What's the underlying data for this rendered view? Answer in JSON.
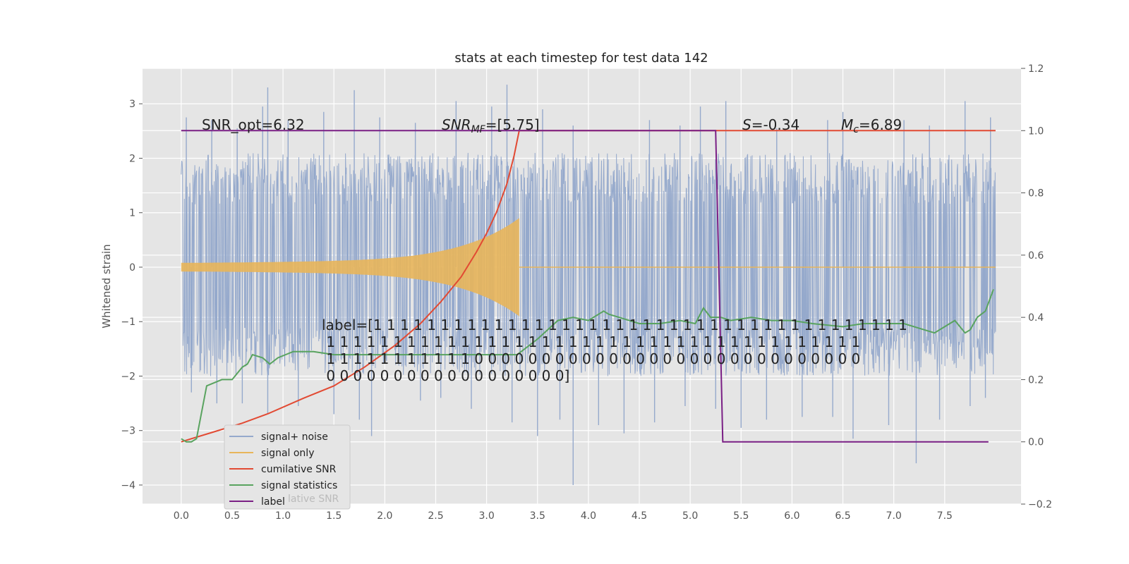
{
  "chart_data": {
    "type": "line",
    "title": "stats at each timestep for test data 142",
    "ylabel": "Whitened strain",
    "xlim": [
      -0.38,
      8.25
    ],
    "ylim": [
      -4.35,
      3.65
    ],
    "y2lim": [
      -0.2,
      1.2
    ],
    "x_ticks": [
      "0.0",
      "0.5",
      "1.0",
      "1.5",
      "2.0",
      "2.5",
      "3.0",
      "3.5",
      "4.0",
      "4.5",
      "5.0",
      "5.5",
      "6.0",
      "6.5",
      "7.0",
      "7.5"
    ],
    "y_ticks": [
      "3",
      "2",
      "1",
      "0",
      "−1",
      "−2",
      "−3",
      "−4"
    ],
    "y2_ticks": [
      "1.2",
      "1.0",
      "0.8",
      "0.6",
      "0.4",
      "0.2",
      "0.0",
      "−0.2"
    ],
    "grid": true,
    "legend_position": "lower-left",
    "annotations": {
      "snr_opt": "SNR_opt=6.32",
      "snr_mf_math": "SNR",
      "snr_mf_sub": "MF",
      "snr_mf_value": "=[5.75]",
      "s_math": "S",
      "s_value": "=-0.34",
      "mc_math": "M",
      "mc_sub": "c",
      "mc_value": "=6.89",
      "label_lines": [
        "label=[1 1 1 1 1 1 1 1 1 1 1 1 1 1 1 1 1 1 1 1 1 1 1 1 1 1 1 1 1 1 1 1 1 1 1 1 1 1 1 1",
        " 1 1 1 1 1 1 1 1 1 1 1 1 1 1 1 1 1 1 1 1 1 1 1 1 1 1 1 1 1 1 1 1 1 1 1 1 1 1 1 1",
        " 1 1 1 1 1 1 1 1 1 1 1 0 0 0 0 0 0 0 0 0 0 0 0 0 0 0 0 0 0 0 0 0 0 0 0 0 0 0 0 0",
        " 0 0 0 0 0 0 0 0 0 0 0 0 0 0 0 0 0 0]"
      ]
    },
    "series": [
      {
        "name": "signal+ noise",
        "axis": "left",
        "color": "#95a9cc",
        "style": "noise",
        "x_range": [
          0,
          8.0
        ],
        "envelope": [
          -2.0,
          2.1
        ],
        "spikes_up": [
          [
            0.05,
            2.75
          ],
          [
            0.3,
            2.7
          ],
          [
            0.55,
            2.55
          ],
          [
            0.8,
            2.95
          ],
          [
            0.85,
            3.3
          ],
          [
            1.05,
            2.7
          ],
          [
            1.4,
            2.85
          ],
          [
            1.7,
            3.25
          ],
          [
            1.95,
            2.75
          ],
          [
            2.3,
            2.65
          ],
          [
            2.7,
            3.05
          ],
          [
            3.05,
            2.95
          ],
          [
            3.2,
            3.35
          ],
          [
            3.55,
            2.9
          ],
          [
            3.85,
            2.6
          ],
          [
            4.6,
            2.7
          ],
          [
            4.9,
            2.6
          ],
          [
            5.1,
            2.95
          ],
          [
            5.35,
            3.05
          ],
          [
            5.85,
            2.55
          ],
          [
            6.35,
            2.7
          ],
          [
            6.5,
            2.85
          ],
          [
            7.1,
            2.7
          ],
          [
            7.35,
            2.6
          ],
          [
            7.7,
            3.05
          ],
          [
            7.95,
            2.75
          ]
        ],
        "spikes_down": [
          [
            0.1,
            -2.3
          ],
          [
            0.35,
            -2.5
          ],
          [
            0.6,
            -2.5
          ],
          [
            0.85,
            -2.7
          ],
          [
            1.15,
            -2.55
          ],
          [
            1.5,
            -2.7
          ],
          [
            1.75,
            -2.8
          ],
          [
            1.87,
            -3.1
          ],
          [
            2.35,
            -2.45
          ],
          [
            2.55,
            -2.4
          ],
          [
            2.85,
            -2.6
          ],
          [
            3.25,
            -2.85
          ],
          [
            3.5,
            -3.1
          ],
          [
            3.72,
            -2.8
          ],
          [
            3.85,
            -4.0
          ],
          [
            4.1,
            -2.9
          ],
          [
            4.35,
            -3.05
          ],
          [
            4.65,
            -2.85
          ],
          [
            4.95,
            -2.55
          ],
          [
            5.25,
            -2.6
          ],
          [
            5.5,
            -2.95
          ],
          [
            5.75,
            -2.8
          ],
          [
            6.1,
            -2.75
          ],
          [
            6.4,
            -2.75
          ],
          [
            6.6,
            -3.15
          ],
          [
            6.95,
            -2.9
          ],
          [
            7.22,
            -3.6
          ],
          [
            7.45,
            -2.8
          ],
          [
            7.75,
            -2.55
          ],
          [
            7.9,
            -2.4
          ]
        ]
      },
      {
        "name": "signal only",
        "axis": "left",
        "color": "#e8b55a",
        "style": "chirp",
        "x_range": [
          0,
          3.32
        ],
        "start_amplitude": 0.08,
        "peak_amplitude": 0.8,
        "tail_x_range": [
          3.32,
          8.0
        ]
      },
      {
        "name": "cumilative SNR",
        "axis": "right",
        "color": "#e24a33",
        "x": [
          0.0,
          0.3,
          0.6,
          0.85,
          1.2,
          1.5,
          1.8,
          2.1,
          2.35,
          2.55,
          2.75,
          2.9,
          3.0,
          3.1,
          3.2,
          3.27,
          3.32,
          5.3,
          8.0
        ],
        "y": [
          0.0,
          0.03,
          0.06,
          0.09,
          0.14,
          0.18,
          0.24,
          0.31,
          0.38,
          0.45,
          0.53,
          0.61,
          0.67,
          0.74,
          0.83,
          0.92,
          1.0,
          1.0,
          1.0
        ]
      },
      {
        "name": "signal statistics",
        "axis": "right",
        "color": "#59a35f",
        "x": [
          0.0,
          0.05,
          0.1,
          0.15,
          0.25,
          0.4,
          0.5,
          0.6,
          0.65,
          0.7,
          0.8,
          0.87,
          0.95,
          1.1,
          1.2,
          1.3,
          1.5,
          1.7,
          2.0,
          2.3,
          2.5,
          2.8,
          3.0,
          3.3,
          3.5,
          3.7,
          3.85,
          4.0,
          4.1,
          4.15,
          4.2,
          4.3,
          4.5,
          4.7,
          4.9,
          5.05,
          5.13,
          5.2,
          5.3,
          5.4,
          5.6,
          5.8,
          6.0,
          6.2,
          6.5,
          6.7,
          6.9,
          7.1,
          7.3,
          7.4,
          7.5,
          7.6,
          7.7,
          7.75,
          7.82,
          7.9,
          7.98
        ],
        "y": [
          0.01,
          0.0,
          0.0,
          0.01,
          0.18,
          0.2,
          0.2,
          0.24,
          0.25,
          0.28,
          0.27,
          0.25,
          0.27,
          0.29,
          0.29,
          0.29,
          0.28,
          0.28,
          0.28,
          0.28,
          0.28,
          0.28,
          0.28,
          0.28,
          0.33,
          0.39,
          0.4,
          0.39,
          0.41,
          0.42,
          0.41,
          0.4,
          0.38,
          0.38,
          0.39,
          0.38,
          0.43,
          0.4,
          0.4,
          0.39,
          0.4,
          0.39,
          0.39,
          0.38,
          0.37,
          0.38,
          0.38,
          0.38,
          0.36,
          0.35,
          0.37,
          0.39,
          0.35,
          0.36,
          0.4,
          0.42,
          0.49
        ]
      },
      {
        "name": "label",
        "axis": "right",
        "color": "#7a1f85",
        "x": [
          0.0,
          5.25,
          5.32,
          7.93
        ],
        "y": [
          1.0,
          1.0,
          0.0,
          0.0
        ]
      }
    ],
    "legend": [
      "signal+ noise",
      "signal only",
      "cumilative SNR",
      "signal statistics",
      "label"
    ],
    "legend_ghost": "lative SNR"
  }
}
